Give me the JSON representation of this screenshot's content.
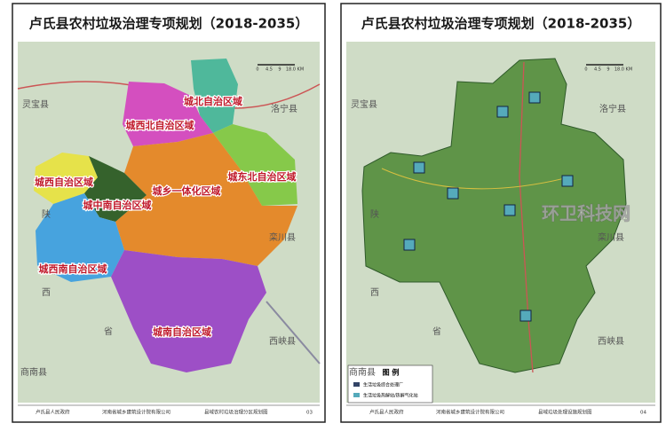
{
  "panels": [
    {
      "title": "卢氏县农村垃圾治理专项规划（2018-2035）",
      "scale": [
        "0",
        "4.5",
        "9",
        "18.0 KM"
      ],
      "regions": [
        "城北自治区域",
        "城西北自治区域",
        "城东北自治区域",
        "城乡一体化区域",
        "城西自治区域",
        "城中南自治区域",
        "城西南自治区域",
        "城南自治区域"
      ],
      "neighbors": [
        "灵宝县",
        "洛宁县",
        "陕",
        "栾川县",
        "西",
        "省",
        "商南县",
        "西峡县"
      ],
      "footer": [
        "卢氏县人民政府",
        "河南省城乡建筑设计院有限公司",
        "县域农村垃圾治理分区规划图",
        "03"
      ]
    },
    {
      "title": "卢氏县农村垃圾治理专项规划（2018-2035）",
      "scale": [
        "0",
        "4.5",
        "9",
        "18.0 KM"
      ],
      "neighbors": [
        "灵宝县",
        "洛宁县",
        "陕",
        "栾川县",
        "西",
        "省",
        "商南县",
        "西峡县"
      ],
      "legend": {
        "title": "图 例",
        "items": [
          "生活垃圾综合处理厂",
          "生活垃圾热解站/热解气化站"
        ]
      },
      "footer": [
        "卢氏县人民政府",
        "河南省城乡建筑设计院有限公司",
        "县域垃圾处理设施规划图",
        "04"
      ]
    }
  ],
  "watermark": "环卫科技网"
}
